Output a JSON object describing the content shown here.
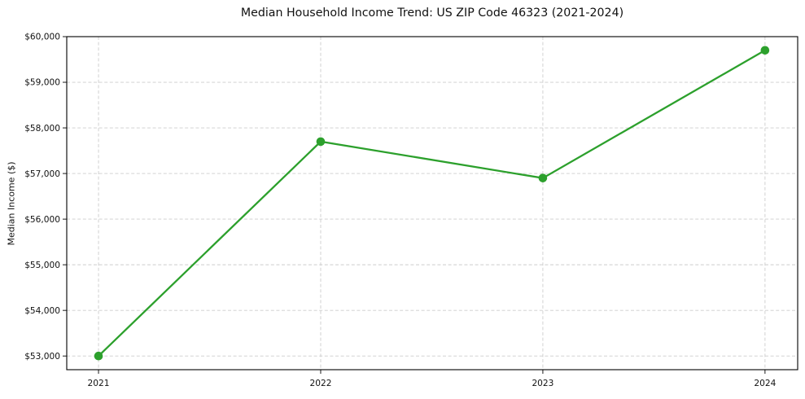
{
  "chart_data": {
    "type": "line",
    "title": "Median Household Income Trend: US ZIP Code 46323 (2021-2024)",
    "xlabel": "",
    "ylabel": "Median Income ($)",
    "x": [
      2021,
      2022,
      2023,
      2024
    ],
    "xtick_labels": [
      "2021",
      "2022",
      "2023",
      "2024"
    ],
    "series": [
      {
        "name": "Median Household Income",
        "values": [
          53000,
          57700,
          56900,
          59700
        ]
      }
    ],
    "yticks": [
      53000,
      54000,
      55000,
      56000,
      57000,
      58000,
      59000,
      60000
    ],
    "ytick_labels": [
      "$53,000",
      "$54,000",
      "$55,000",
      "$56,000",
      "$57,000",
      "$58,000",
      "$59,000",
      "$60,000"
    ],
    "ylim": [
      52700,
      60000
    ],
    "xlim": [
      2020.857,
      2024.147
    ],
    "grid": true,
    "legend": false,
    "line_color": "#2ca02c",
    "marker": "circle"
  }
}
